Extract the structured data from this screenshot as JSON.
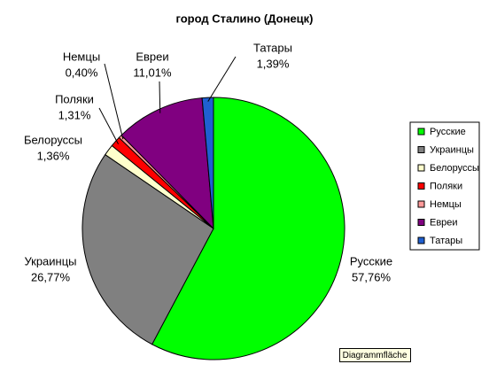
{
  "chart_data": {
    "type": "pie",
    "title": "город Сталино (Донецк)",
    "categories": [
      "Русские",
      "Украинцы",
      "Белоруссы",
      "Поляки",
      "Немцы",
      "Евреи",
      "Татары"
    ],
    "values": [
      57.76,
      26.77,
      1.36,
      1.31,
      0.4,
      11.01,
      1.39
    ],
    "value_labels": [
      "57,76%",
      "26,77%",
      "1,36%",
      "1,31%",
      "0,40%",
      "11,01%",
      "1,39%"
    ],
    "colors": [
      "#00ff00",
      "#808080",
      "#ffffcc",
      "#ff0000",
      "#ff9999",
      "#800080",
      "#1f5fd1"
    ],
    "legend": "right"
  },
  "tooltip": "Diagrammfläche"
}
